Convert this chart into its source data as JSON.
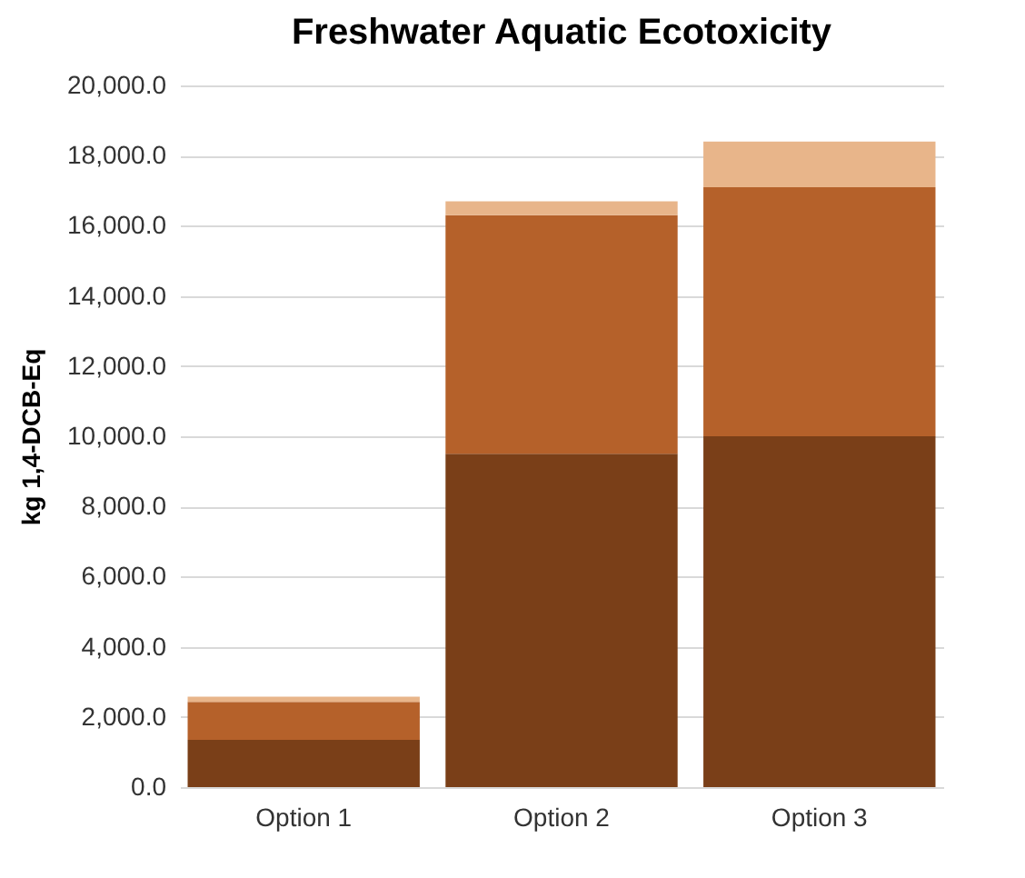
{
  "chart_data": {
    "type": "bar",
    "title": "Freshwater Aquatic Ecotoxicity",
    "ylabel": "kg 1,4-DCB-Eq",
    "categories": [
      "Option 1",
      "Option 2",
      "Option 3"
    ],
    "stacked": true,
    "grid": "y",
    "legend": false,
    "series": [
      {
        "color": "#7a3f18",
        "values": [
          1350,
          9500,
          10000
        ]
      },
      {
        "color": "#b5612a",
        "values": [
          1080,
          6800,
          7100
        ]
      },
      {
        "color": "#e8b58a",
        "values": [
          150,
          400,
          1300
        ]
      }
    ],
    "ylim": [
      0,
      20000
    ],
    "yticks": [
      {
        "value": 0,
        "label": "0.0"
      },
      {
        "value": 2000,
        "label": "2,000.0"
      },
      {
        "value": 4000,
        "label": "4,000.0"
      },
      {
        "value": 6000,
        "label": "6,000.0"
      },
      {
        "value": 8000,
        "label": "8,000.0"
      },
      {
        "value": 10000,
        "label": "10,000.0"
      },
      {
        "value": 12000,
        "label": "12,000.0"
      },
      {
        "value": 14000,
        "label": "14,000.0"
      },
      {
        "value": 16000,
        "label": "16,000.0"
      },
      {
        "value": 18000,
        "label": "18,000.0"
      },
      {
        "value": 20000,
        "label": "20,000.0"
      }
    ]
  }
}
